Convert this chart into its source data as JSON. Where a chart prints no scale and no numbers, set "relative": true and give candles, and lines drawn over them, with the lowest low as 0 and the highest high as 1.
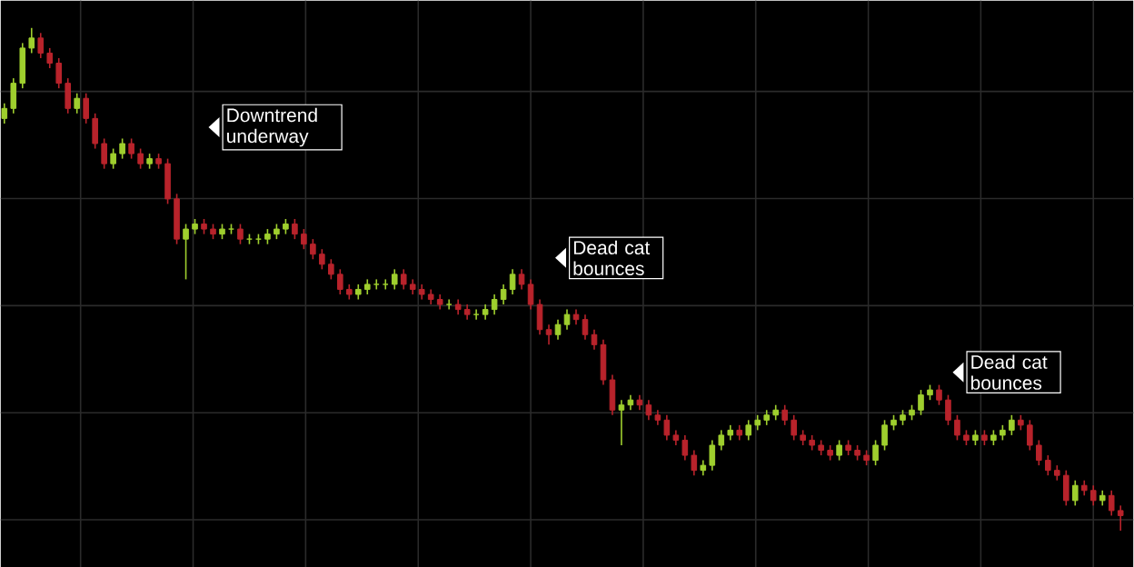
{
  "chart_data": {
    "type": "candlestick",
    "relative": true,
    "grid": true,
    "annotations": [
      "Downtrend underway",
      "Dead cat bounces",
      "Dead cat bounces"
    ],
    "categories": [
      null,
      null,
      null,
      null,
      null,
      null,
      null,
      null,
      null,
      null,
      null,
      null,
      null,
      null,
      null,
      null,
      null,
      null,
      null,
      null,
      null,
      null,
      null,
      null,
      null,
      null,
      null,
      null,
      null,
      null,
      null,
      null,
      null,
      null,
      null,
      null,
      null,
      null,
      null,
      null,
      null,
      null,
      null,
      null,
      null,
      null,
      null,
      null,
      null,
      null,
      null,
      null,
      null,
      null,
      null,
      null,
      null,
      null,
      null,
      null,
      null,
      null,
      null,
      null,
      null,
      null,
      null,
      null,
      null,
      null,
      null,
      null,
      null,
      null,
      null,
      null,
      null,
      null,
      null,
      null,
      null,
      null,
      null,
      null,
      null,
      null,
      null,
      null,
      null,
      null,
      null,
      null,
      null,
      null,
      null,
      null,
      null,
      null,
      null,
      null,
      null,
      null,
      null,
      null,
      null,
      null,
      null,
      null,
      null,
      null,
      null,
      null,
      null,
      null,
      null,
      null,
      null,
      null,
      null,
      null,
      null,
      null,
      null,
      null
    ],
    "ohlc": [
      [
        0.82,
        0.85,
        0.81,
        0.84
      ],
      [
        0.84,
        0.9,
        0.83,
        0.89
      ],
      [
        0.89,
        0.97,
        0.88,
        0.96
      ],
      [
        0.96,
        1.0,
        0.95,
        0.98
      ],
      [
        0.98,
        0.99,
        0.94,
        0.95
      ],
      [
        0.95,
        0.96,
        0.92,
        0.93
      ],
      [
        0.93,
        0.94,
        0.88,
        0.89
      ],
      [
        0.89,
        0.9,
        0.83,
        0.84
      ],
      [
        0.84,
        0.87,
        0.83,
        0.86
      ],
      [
        0.86,
        0.87,
        0.81,
        0.82
      ],
      [
        0.82,
        0.83,
        0.76,
        0.77
      ],
      [
        0.77,
        0.78,
        0.72,
        0.73
      ],
      [
        0.73,
        0.76,
        0.72,
        0.75
      ],
      [
        0.75,
        0.78,
        0.74,
        0.77
      ],
      [
        0.77,
        0.78,
        0.74,
        0.75
      ],
      [
        0.75,
        0.76,
        0.72,
        0.73
      ],
      [
        0.73,
        0.75,
        0.72,
        0.74
      ],
      [
        0.74,
        0.75,
        0.72,
        0.73
      ],
      [
        0.73,
        0.74,
        0.65,
        0.66
      ],
      [
        0.66,
        0.67,
        0.57,
        0.58
      ],
      [
        0.58,
        0.61,
        0.5,
        0.6
      ],
      [
        0.6,
        0.62,
        0.59,
        0.61
      ],
      [
        0.61,
        0.62,
        0.59,
        0.6
      ],
      [
        0.6,
        0.61,
        0.58,
        0.59
      ],
      [
        0.59,
        0.61,
        0.58,
        0.6
      ],
      [
        0.6,
        0.61,
        0.59,
        0.6
      ],
      [
        0.6,
        0.61,
        0.57,
        0.58
      ],
      [
        0.58,
        0.59,
        0.57,
        0.58
      ],
      [
        0.58,
        0.59,
        0.57,
        0.58
      ],
      [
        0.58,
        0.6,
        0.57,
        0.59
      ],
      [
        0.59,
        0.61,
        0.58,
        0.6
      ],
      [
        0.6,
        0.62,
        0.59,
        0.61
      ],
      [
        0.61,
        0.62,
        0.58,
        0.59
      ],
      [
        0.59,
        0.6,
        0.56,
        0.57
      ],
      [
        0.57,
        0.58,
        0.54,
        0.55
      ],
      [
        0.55,
        0.56,
        0.52,
        0.53
      ],
      [
        0.53,
        0.54,
        0.5,
        0.51
      ],
      [
        0.51,
        0.52,
        0.47,
        0.48
      ],
      [
        0.48,
        0.49,
        0.46,
        0.47
      ],
      [
        0.47,
        0.49,
        0.46,
        0.48
      ],
      [
        0.48,
        0.5,
        0.47,
        0.49
      ],
      [
        0.49,
        0.5,
        0.48,
        0.49
      ],
      [
        0.49,
        0.5,
        0.48,
        0.49
      ],
      [
        0.49,
        0.52,
        0.48,
        0.51
      ],
      [
        0.51,
        0.52,
        0.48,
        0.49
      ],
      [
        0.49,
        0.5,
        0.47,
        0.48
      ],
      [
        0.48,
        0.49,
        0.46,
        0.47
      ],
      [
        0.47,
        0.48,
        0.45,
        0.46
      ],
      [
        0.46,
        0.47,
        0.44,
        0.45
      ],
      [
        0.45,
        0.46,
        0.44,
        0.45
      ],
      [
        0.45,
        0.46,
        0.43,
        0.44
      ],
      [
        0.44,
        0.45,
        0.42,
        0.43
      ],
      [
        0.43,
        0.44,
        0.42,
        0.43
      ],
      [
        0.43,
        0.45,
        0.42,
        0.44
      ],
      [
        0.44,
        0.47,
        0.43,
        0.46
      ],
      [
        0.46,
        0.49,
        0.45,
        0.48
      ],
      [
        0.48,
        0.52,
        0.47,
        0.51
      ],
      [
        0.51,
        0.52,
        0.48,
        0.49
      ],
      [
        0.49,
        0.5,
        0.44,
        0.45
      ],
      [
        0.45,
        0.46,
        0.39,
        0.4
      ],
      [
        0.4,
        0.41,
        0.37,
        0.39
      ],
      [
        0.39,
        0.42,
        0.38,
        0.41
      ],
      [
        0.41,
        0.44,
        0.4,
        0.43
      ],
      [
        0.43,
        0.44,
        0.41,
        0.42
      ],
      [
        0.42,
        0.43,
        0.38,
        0.39
      ],
      [
        0.39,
        0.4,
        0.36,
        0.37
      ],
      [
        0.37,
        0.38,
        0.29,
        0.3
      ],
      [
        0.3,
        0.31,
        0.23,
        0.24
      ],
      [
        0.24,
        0.26,
        0.17,
        0.25
      ],
      [
        0.25,
        0.27,
        0.24,
        0.26
      ],
      [
        0.26,
        0.27,
        0.24,
        0.25
      ],
      [
        0.25,
        0.26,
        0.22,
        0.23
      ],
      [
        0.23,
        0.24,
        0.21,
        0.22
      ],
      [
        0.22,
        0.23,
        0.18,
        0.19
      ],
      [
        0.19,
        0.2,
        0.17,
        0.18
      ],
      [
        0.18,
        0.19,
        0.14,
        0.15
      ],
      [
        0.15,
        0.16,
        0.11,
        0.12
      ],
      [
        0.12,
        0.14,
        0.11,
        0.13
      ],
      [
        0.13,
        0.18,
        0.12,
        0.17
      ],
      [
        0.17,
        0.2,
        0.16,
        0.19
      ],
      [
        0.19,
        0.21,
        0.18,
        0.2
      ],
      [
        0.2,
        0.21,
        0.18,
        0.19
      ],
      [
        0.19,
        0.22,
        0.18,
        0.21
      ],
      [
        0.21,
        0.23,
        0.2,
        0.22
      ],
      [
        0.22,
        0.24,
        0.21,
        0.23
      ],
      [
        0.23,
        0.25,
        0.22,
        0.24
      ],
      [
        0.24,
        0.25,
        0.21,
        0.22
      ],
      [
        0.22,
        0.23,
        0.18,
        0.19
      ],
      [
        0.19,
        0.2,
        0.17,
        0.18
      ],
      [
        0.18,
        0.19,
        0.16,
        0.17
      ],
      [
        0.17,
        0.18,
        0.15,
        0.16
      ],
      [
        0.16,
        0.17,
        0.14,
        0.15
      ],
      [
        0.15,
        0.18,
        0.14,
        0.17
      ],
      [
        0.17,
        0.18,
        0.15,
        0.16
      ],
      [
        0.16,
        0.17,
        0.14,
        0.15
      ],
      [
        0.15,
        0.16,
        0.13,
        0.14
      ],
      [
        0.14,
        0.18,
        0.13,
        0.17
      ],
      [
        0.17,
        0.22,
        0.16,
        0.21
      ],
      [
        0.21,
        0.23,
        0.2,
        0.22
      ],
      [
        0.22,
        0.24,
        0.21,
        0.23
      ],
      [
        0.23,
        0.25,
        0.22,
        0.24
      ],
      [
        0.24,
        0.28,
        0.23,
        0.27
      ],
      [
        0.27,
        0.29,
        0.26,
        0.28
      ],
      [
        0.28,
        0.29,
        0.25,
        0.26
      ],
      [
        0.26,
        0.27,
        0.21,
        0.22
      ],
      [
        0.22,
        0.23,
        0.18,
        0.19
      ],
      [
        0.19,
        0.2,
        0.17,
        0.18
      ],
      [
        0.18,
        0.2,
        0.17,
        0.19
      ],
      [
        0.19,
        0.2,
        0.17,
        0.18
      ],
      [
        0.18,
        0.2,
        0.17,
        0.19
      ],
      [
        0.19,
        0.21,
        0.18,
        0.2
      ],
      [
        0.2,
        0.23,
        0.19,
        0.22
      ],
      [
        0.22,
        0.23,
        0.2,
        0.21
      ],
      [
        0.21,
        0.22,
        0.16,
        0.17
      ],
      [
        0.17,
        0.18,
        0.13,
        0.14
      ],
      [
        0.14,
        0.15,
        0.11,
        0.12
      ],
      [
        0.12,
        0.13,
        0.1,
        0.11
      ],
      [
        0.11,
        0.12,
        0.05,
        0.06
      ],
      [
        0.06,
        0.1,
        0.05,
        0.09
      ],
      [
        0.09,
        0.1,
        0.07,
        0.08
      ],
      [
        0.08,
        0.09,
        0.05,
        0.06
      ],
      [
        0.06,
        0.08,
        0.05,
        0.07
      ],
      [
        0.07,
        0.08,
        0.03,
        0.04
      ],
      [
        0.04,
        0.05,
        0.0,
        0.03
      ]
    ],
    "colors": [
      "#9fcf2e",
      "#9fcf2e",
      "#9fcf2e",
      "#9fcf2e",
      "#b8232b",
      "#b8232b",
      "#b8232b",
      "#b8232b",
      "#9fcf2e",
      "#b8232b",
      "#b8232b",
      "#b8232b",
      "#9fcf2e",
      "#9fcf2e",
      "#b8232b",
      "#b8232b",
      "#9fcf2e",
      "#b8232b",
      "#b8232b",
      "#b8232b",
      "#9fcf2e",
      "#9fcf2e",
      "#b8232b",
      "#b8232b",
      "#9fcf2e",
      "#9fcf2e",
      "#b8232b",
      "#9fcf2e",
      "#9fcf2e",
      "#9fcf2e",
      "#9fcf2e",
      "#9fcf2e",
      "#b8232b",
      "#b8232b",
      "#b8232b",
      "#b8232b",
      "#b8232b",
      "#b8232b",
      "#b8232b",
      "#9fcf2e",
      "#9fcf2e",
      "#9fcf2e",
      "#9fcf2e",
      "#9fcf2e",
      "#b8232b",
      "#b8232b",
      "#b8232b",
      "#b8232b",
      "#b8232b",
      "#9fcf2e",
      "#b8232b",
      "#b8232b",
      "#9fcf2e",
      "#9fcf2e",
      "#9fcf2e",
      "#9fcf2e",
      "#9fcf2e",
      "#b8232b",
      "#b8232b",
      "#b8232b",
      "#b8232b",
      "#9fcf2e",
      "#9fcf2e",
      "#b8232b",
      "#b8232b",
      "#b8232b",
      "#b8232b",
      "#b8232b",
      "#9fcf2e",
      "#9fcf2e",
      "#b8232b",
      "#b8232b",
      "#b8232b",
      "#b8232b",
      "#b8232b",
      "#b8232b",
      "#b8232b",
      "#9fcf2e",
      "#9fcf2e",
      "#9fcf2e",
      "#9fcf2e",
      "#b8232b",
      "#9fcf2e",
      "#9fcf2e",
      "#9fcf2e",
      "#9fcf2e",
      "#b8232b",
      "#b8232b",
      "#b8232b",
      "#b8232b",
      "#b8232b",
      "#b8232b",
      "#9fcf2e",
      "#b8232b",
      "#b8232b",
      "#b8232b",
      "#9fcf2e",
      "#9fcf2e",
      "#9fcf2e",
      "#9fcf2e",
      "#9fcf2e",
      "#9fcf2e",
      "#9fcf2e",
      "#b8232b",
      "#b8232b",
      "#b8232b",
      "#b8232b",
      "#9fcf2e",
      "#b8232b",
      "#9fcf2e",
      "#9fcf2e",
      "#9fcf2e",
      "#b8232b",
      "#b8232b",
      "#b8232b",
      "#b8232b",
      "#b8232b",
      "#b8232b",
      "#9fcf2e",
      "#b8232b",
      "#b8232b",
      "#9fcf2e",
      "#b8232b",
      "#b8232b"
    ]
  }
}
